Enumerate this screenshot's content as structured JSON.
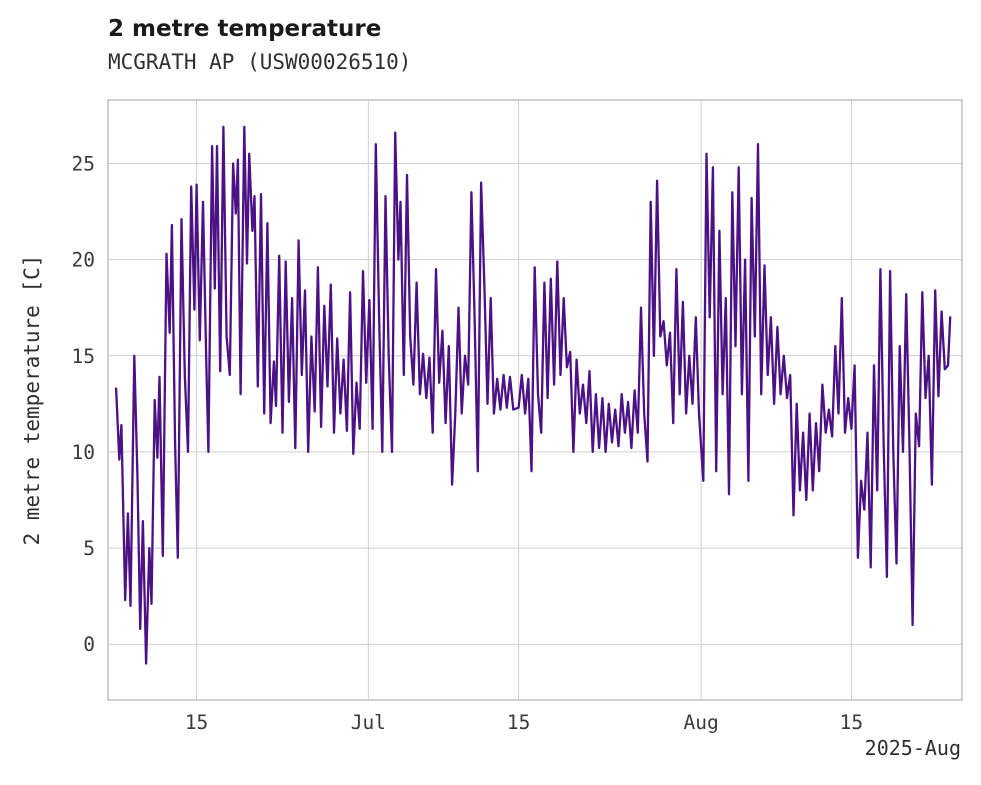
{
  "chart_data": {
    "type": "line",
    "title": "2 metre temperature",
    "subtitle": "MCGRATH AP (USW00026510)",
    "ylabel": "2 metre temperature [C]",
    "corner_label": "2025-Aug",
    "line_color": "#4c1185",
    "grid_color": "#cfcfcf",
    "border_color": "#bdbdbd",
    "grid": true,
    "legend": "none",
    "xlim": [
      -0.25,
      79.3
    ],
    "ylim": [
      -2.9,
      28.3
    ],
    "x_ticks": [
      {
        "t": 8,
        "label": "15"
      },
      {
        "t": 24,
        "label": "Jul"
      },
      {
        "t": 38,
        "label": "15"
      },
      {
        "t": 55,
        "label": "Aug"
      },
      {
        "t": 69,
        "label": "15"
      }
    ],
    "y_ticks": [
      0,
      5,
      10,
      15,
      20,
      25
    ],
    "series": [
      {
        "name": "2 metre temperature",
        "points": [
          [
            0.5,
            13.3
          ],
          [
            0.8,
            9.6
          ],
          [
            1.0,
            11.4
          ],
          [
            1.35,
            2.3
          ],
          [
            1.6,
            6.8
          ],
          [
            1.85,
            2.0
          ],
          [
            2.2,
            15.0
          ],
          [
            2.5,
            8.6
          ],
          [
            2.75,
            0.8
          ],
          [
            3.0,
            6.4
          ],
          [
            3.3,
            -1.0
          ],
          [
            3.6,
            5.0
          ],
          [
            3.8,
            2.1
          ],
          [
            4.1,
            12.7
          ],
          [
            4.35,
            9.7
          ],
          [
            4.55,
            13.9
          ],
          [
            4.85,
            4.6
          ],
          [
            5.2,
            20.3
          ],
          [
            5.5,
            16.2
          ],
          [
            5.7,
            21.8
          ],
          [
            6.0,
            10.4
          ],
          [
            6.25,
            4.5
          ],
          [
            6.6,
            22.1
          ],
          [
            6.9,
            14.0
          ],
          [
            7.2,
            10.0
          ],
          [
            7.5,
            23.8
          ],
          [
            7.8,
            17.4
          ],
          [
            8.0,
            23.9
          ],
          [
            8.3,
            15.8
          ],
          [
            8.6,
            23.0
          ],
          [
            8.9,
            14.9
          ],
          [
            9.1,
            10.0
          ],
          [
            9.45,
            25.9
          ],
          [
            9.7,
            18.5
          ],
          [
            9.9,
            25.9
          ],
          [
            10.2,
            14.2
          ],
          [
            10.5,
            26.9
          ],
          [
            10.8,
            16.0
          ],
          [
            11.1,
            14.0
          ],
          [
            11.4,
            25.0
          ],
          [
            11.65,
            22.4
          ],
          [
            11.85,
            25.2
          ],
          [
            12.1,
            13.0
          ],
          [
            12.45,
            26.9
          ],
          [
            12.7,
            19.8
          ],
          [
            12.9,
            25.5
          ],
          [
            13.2,
            21.5
          ],
          [
            13.4,
            23.3
          ],
          [
            13.7,
            13.4
          ],
          [
            14.0,
            23.4
          ],
          [
            14.3,
            12.0
          ],
          [
            14.6,
            21.9
          ],
          [
            14.9,
            11.5
          ],
          [
            15.2,
            14.7
          ],
          [
            15.4,
            12.4
          ],
          [
            15.7,
            20.2
          ],
          [
            16.0,
            11.0
          ],
          [
            16.3,
            19.9
          ],
          [
            16.6,
            12.6
          ],
          [
            16.9,
            18.0
          ],
          [
            17.2,
            10.2
          ],
          [
            17.5,
            21.0
          ],
          [
            17.8,
            14.0
          ],
          [
            18.1,
            18.4
          ],
          [
            18.4,
            10.0
          ],
          [
            18.7,
            16.0
          ],
          [
            19.0,
            12.1
          ],
          [
            19.3,
            19.6
          ],
          [
            19.6,
            11.3
          ],
          [
            19.9,
            17.6
          ],
          [
            20.2,
            13.4
          ],
          [
            20.5,
            18.7
          ],
          [
            20.8,
            11.0
          ],
          [
            21.1,
            15.9
          ],
          [
            21.4,
            12.0
          ],
          [
            21.7,
            14.8
          ],
          [
            22.0,
            11.1
          ],
          [
            22.3,
            18.3
          ],
          [
            22.6,
            9.9
          ],
          [
            22.9,
            13.6
          ],
          [
            23.2,
            11.2
          ],
          [
            23.5,
            19.4
          ],
          [
            23.8,
            13.6
          ],
          [
            24.1,
            17.9
          ],
          [
            24.4,
            11.2
          ],
          [
            24.7,
            26.0
          ],
          [
            25.0,
            17.0
          ],
          [
            25.3,
            10.0
          ],
          [
            25.6,
            23.3
          ],
          [
            25.9,
            15.0
          ],
          [
            26.2,
            10.0
          ],
          [
            26.5,
            26.6
          ],
          [
            26.8,
            20.0
          ],
          [
            27.0,
            23.0
          ],
          [
            27.3,
            14.0
          ],
          [
            27.6,
            24.4
          ],
          [
            27.9,
            16.0
          ],
          [
            28.2,
            13.5
          ],
          [
            28.5,
            18.8
          ],
          [
            28.8,
            13.0
          ],
          [
            29.1,
            15.1
          ],
          [
            29.4,
            12.8
          ],
          [
            29.7,
            14.9
          ],
          [
            30.0,
            11.0
          ],
          [
            30.3,
            19.5
          ],
          [
            30.6,
            13.6
          ],
          [
            30.9,
            16.3
          ],
          [
            31.2,
            11.5
          ],
          [
            31.5,
            15.5
          ],
          [
            31.8,
            8.3
          ],
          [
            32.1,
            12.0
          ],
          [
            32.4,
            17.5
          ],
          [
            32.7,
            12.0
          ],
          [
            33.0,
            15.0
          ],
          [
            33.3,
            13.5
          ],
          [
            33.6,
            23.5
          ],
          [
            33.9,
            17.0
          ],
          [
            34.2,
            9.0
          ],
          [
            34.5,
            24.0
          ],
          [
            34.8,
            18.8
          ],
          [
            35.1,
            12.5
          ],
          [
            35.4,
            18.0
          ],
          [
            35.7,
            12.0
          ],
          [
            36.0,
            13.8
          ],
          [
            36.3,
            12.2
          ],
          [
            36.6,
            14.0
          ],
          [
            36.9,
            12.3
          ],
          [
            37.2,
            13.9
          ],
          [
            37.5,
            12.2
          ],
          [
            38.0,
            12.3
          ],
          [
            38.3,
            14.0
          ],
          [
            38.6,
            12.0
          ],
          [
            38.9,
            13.8
          ],
          [
            39.2,
            9.0
          ],
          [
            39.5,
            19.6
          ],
          [
            39.8,
            13.0
          ],
          [
            40.1,
            11.0
          ],
          [
            40.4,
            18.8
          ],
          [
            40.7,
            12.8
          ],
          [
            41.0,
            19.0
          ],
          [
            41.3,
            13.5
          ],
          [
            41.6,
            19.9
          ],
          [
            41.9,
            14.0
          ],
          [
            42.2,
            18.0
          ],
          [
            42.5,
            14.4
          ],
          [
            42.8,
            15.2
          ],
          [
            43.1,
            10.0
          ],
          [
            43.4,
            14.8
          ],
          [
            43.7,
            12.0
          ],
          [
            44.0,
            13.5
          ],
          [
            44.3,
            11.5
          ],
          [
            44.6,
            14.2
          ],
          [
            44.9,
            10.0
          ],
          [
            45.2,
            13.0
          ],
          [
            45.5,
            10.2
          ],
          [
            45.8,
            12.8
          ],
          [
            46.1,
            10.0
          ],
          [
            46.4,
            12.5
          ],
          [
            46.7,
            10.5
          ],
          [
            47.0,
            12.2
          ],
          [
            47.3,
            10.3
          ],
          [
            47.6,
            13.0
          ],
          [
            47.9,
            11.0
          ],
          [
            48.2,
            12.6
          ],
          [
            48.5,
            10.2
          ],
          [
            48.8,
            13.2
          ],
          [
            49.1,
            11.0
          ],
          [
            49.4,
            17.5
          ],
          [
            49.7,
            12.0
          ],
          [
            50.0,
            9.5
          ],
          [
            50.3,
            23.0
          ],
          [
            50.6,
            15.0
          ],
          [
            50.9,
            24.1
          ],
          [
            51.2,
            16.0
          ],
          [
            51.5,
            16.8
          ],
          [
            51.8,
            14.5
          ],
          [
            52.1,
            16.2
          ],
          [
            52.4,
            11.5
          ],
          [
            52.7,
            19.5
          ],
          [
            53.0,
            13.0
          ],
          [
            53.3,
            17.8
          ],
          [
            53.6,
            12.0
          ],
          [
            53.9,
            15.0
          ],
          [
            54.2,
            12.5
          ],
          [
            54.5,
            17.0
          ],
          [
            54.8,
            12.0
          ],
          [
            55.2,
            8.5
          ],
          [
            55.5,
            25.5
          ],
          [
            55.8,
            17.0
          ],
          [
            56.1,
            24.8
          ],
          [
            56.4,
            9.0
          ],
          [
            56.7,
            21.5
          ],
          [
            57.0,
            13.0
          ],
          [
            57.3,
            18.0
          ],
          [
            57.6,
            7.8
          ],
          [
            57.9,
            23.5
          ],
          [
            58.2,
            15.5
          ],
          [
            58.5,
            24.8
          ],
          [
            58.8,
            13.0
          ],
          [
            59.1,
            20.0
          ],
          [
            59.4,
            8.5
          ],
          [
            59.7,
            23.2
          ],
          [
            60.0,
            16.0
          ],
          [
            60.3,
            26.0
          ],
          [
            60.6,
            13.0
          ],
          [
            60.9,
            19.7
          ],
          [
            61.2,
            14.0
          ],
          [
            61.5,
            17.0
          ],
          [
            61.8,
            12.5
          ],
          [
            62.1,
            16.5
          ],
          [
            62.4,
            13.0
          ],
          [
            62.7,
            15.0
          ],
          [
            63.0,
            12.8
          ],
          [
            63.3,
            14.0
          ],
          [
            63.6,
            6.7
          ],
          [
            63.9,
            12.5
          ],
          [
            64.2,
            8.0
          ],
          [
            64.5,
            11.0
          ],
          [
            64.8,
            7.5
          ],
          [
            65.1,
            12.0
          ],
          [
            65.4,
            8.0
          ],
          [
            65.7,
            11.5
          ],
          [
            66.0,
            9.0
          ],
          [
            66.3,
            13.5
          ],
          [
            66.6,
            11.0
          ],
          [
            66.9,
            12.2
          ],
          [
            67.2,
            10.8
          ],
          [
            67.5,
            15.5
          ],
          [
            67.8,
            12.0
          ],
          [
            68.1,
            18.0
          ],
          [
            68.4,
            11.0
          ],
          [
            68.7,
            12.8
          ],
          [
            69.0,
            11.2
          ],
          [
            69.3,
            14.5
          ],
          [
            69.6,
            4.5
          ],
          [
            69.9,
            8.5
          ],
          [
            70.2,
            7.0
          ],
          [
            70.5,
            11.0
          ],
          [
            70.8,
            4.0
          ],
          [
            71.1,
            14.5
          ],
          [
            71.4,
            8.0
          ],
          [
            71.7,
            19.5
          ],
          [
            72.0,
            10.5
          ],
          [
            72.3,
            3.5
          ],
          [
            72.6,
            19.4
          ],
          [
            72.9,
            10.0
          ],
          [
            73.2,
            4.2
          ],
          [
            73.5,
            15.5
          ],
          [
            73.8,
            10.0
          ],
          [
            74.1,
            18.2
          ],
          [
            74.4,
            10.5
          ],
          [
            74.7,
            1.0
          ],
          [
            75.0,
            12.0
          ],
          [
            75.3,
            10.3
          ],
          [
            75.6,
            18.3
          ],
          [
            75.9,
            12.8
          ],
          [
            76.2,
            15.0
          ],
          [
            76.5,
            8.3
          ],
          [
            76.8,
            18.4
          ],
          [
            77.1,
            12.9
          ],
          [
            77.4,
            17.3
          ],
          [
            77.7,
            14.3
          ],
          [
            78.0,
            14.5
          ],
          [
            78.2,
            17.0
          ]
        ]
      }
    ]
  }
}
